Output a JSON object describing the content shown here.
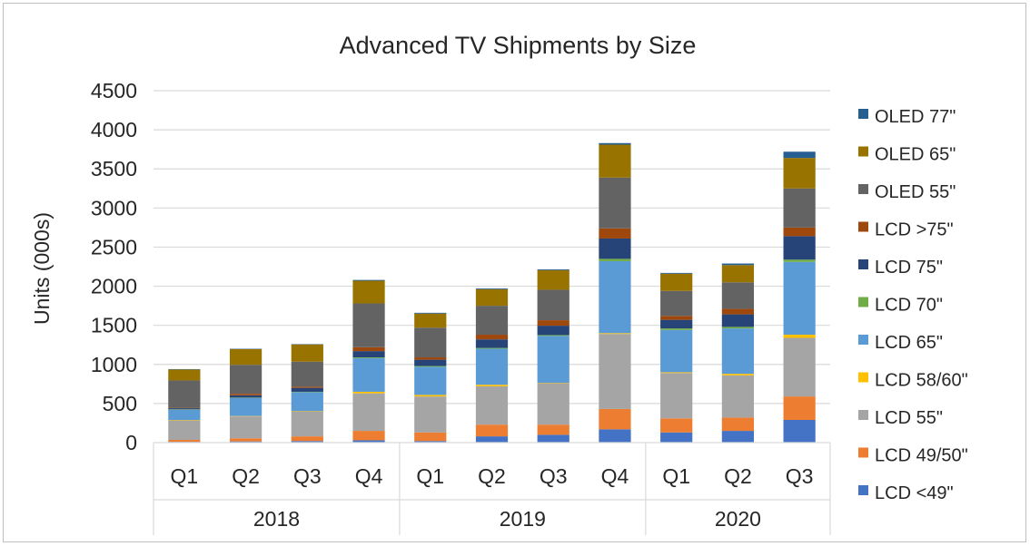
{
  "chart_data": {
    "type": "bar",
    "stacked": true,
    "title": "Advanced TV Shipments by Size",
    "ylabel": "Units (000s)",
    "xlabel": "",
    "ylim": [
      0,
      4500
    ],
    "yticks": [
      0,
      500,
      1000,
      1500,
      2000,
      2500,
      3000,
      3500,
      4000,
      4500
    ],
    "grid": true,
    "legend_position": "right",
    "groups": [
      {
        "label": "2018",
        "categories": [
          "Q1",
          "Q2",
          "Q3",
          "Q4"
        ]
      },
      {
        "label": "2019",
        "categories": [
          "Q1",
          "Q2",
          "Q3",
          "Q4"
        ]
      },
      {
        "label": "2020",
        "categories": [
          "Q1",
          "Q2",
          "Q3"
        ]
      }
    ],
    "categories": [
      "Q1",
      "Q2",
      "Q3",
      "Q4",
      "Q1",
      "Q2",
      "Q3",
      "Q4",
      "Q1",
      "Q2",
      "Q3"
    ],
    "series": [
      {
        "name": "LCD <49\"",
        "color": "#4472c4",
        "values": [
          10,
          15,
          20,
          30,
          20,
          80,
          100,
          170,
          130,
          150,
          290
        ]
      },
      {
        "name": "LCD 49/50\"",
        "color": "#ed7d31",
        "values": [
          25,
          40,
          60,
          120,
          110,
          150,
          130,
          260,
          180,
          170,
          300
        ]
      },
      {
        "name": "LCD 55\"",
        "color": "#a5a5a5",
        "values": [
          250,
          280,
          320,
          480,
          460,
          490,
          530,
          960,
          580,
          540,
          750
        ]
      },
      {
        "name": "LCD 58/60\"",
        "color": "#ffc000",
        "values": [
          5,
          5,
          5,
          20,
          20,
          20,
          5,
          10,
          10,
          20,
          40
        ]
      },
      {
        "name": "LCD 65\"",
        "color": "#5b9bd5",
        "values": [
          130,
          230,
          240,
          430,
          360,
          460,
          600,
          920,
          540,
          580,
          930
        ]
      },
      {
        "name": "LCD 70\"",
        "color": "#70ad47",
        "values": [
          5,
          5,
          5,
          10,
          10,
          10,
          10,
          30,
          20,
          20,
          30
        ]
      },
      {
        "name": "LCD 75\"",
        "color": "#264478",
        "values": [
          15,
          30,
          50,
          80,
          80,
          110,
          120,
          260,
          110,
          160,
          300
        ]
      },
      {
        "name": "LCD >75\"",
        "color": "#9e480e",
        "values": [
          5,
          20,
          15,
          50,
          30,
          60,
          70,
          130,
          50,
          70,
          110
        ]
      },
      {
        "name": "OLED 55\"",
        "color": "#636363",
        "values": [
          350,
          370,
          320,
          560,
          380,
          370,
          390,
          650,
          320,
          340,
          500
        ]
      },
      {
        "name": "OLED 65\"",
        "color": "#997300",
        "values": [
          140,
          200,
          220,
          290,
          180,
          210,
          250,
          420,
          220,
          220,
          390
        ]
      },
      {
        "name": "OLED 77\"",
        "color": "#255e91",
        "values": [
          5,
          5,
          5,
          10,
          10,
          10,
          10,
          20,
          10,
          20,
          80
        ]
      }
    ]
  }
}
